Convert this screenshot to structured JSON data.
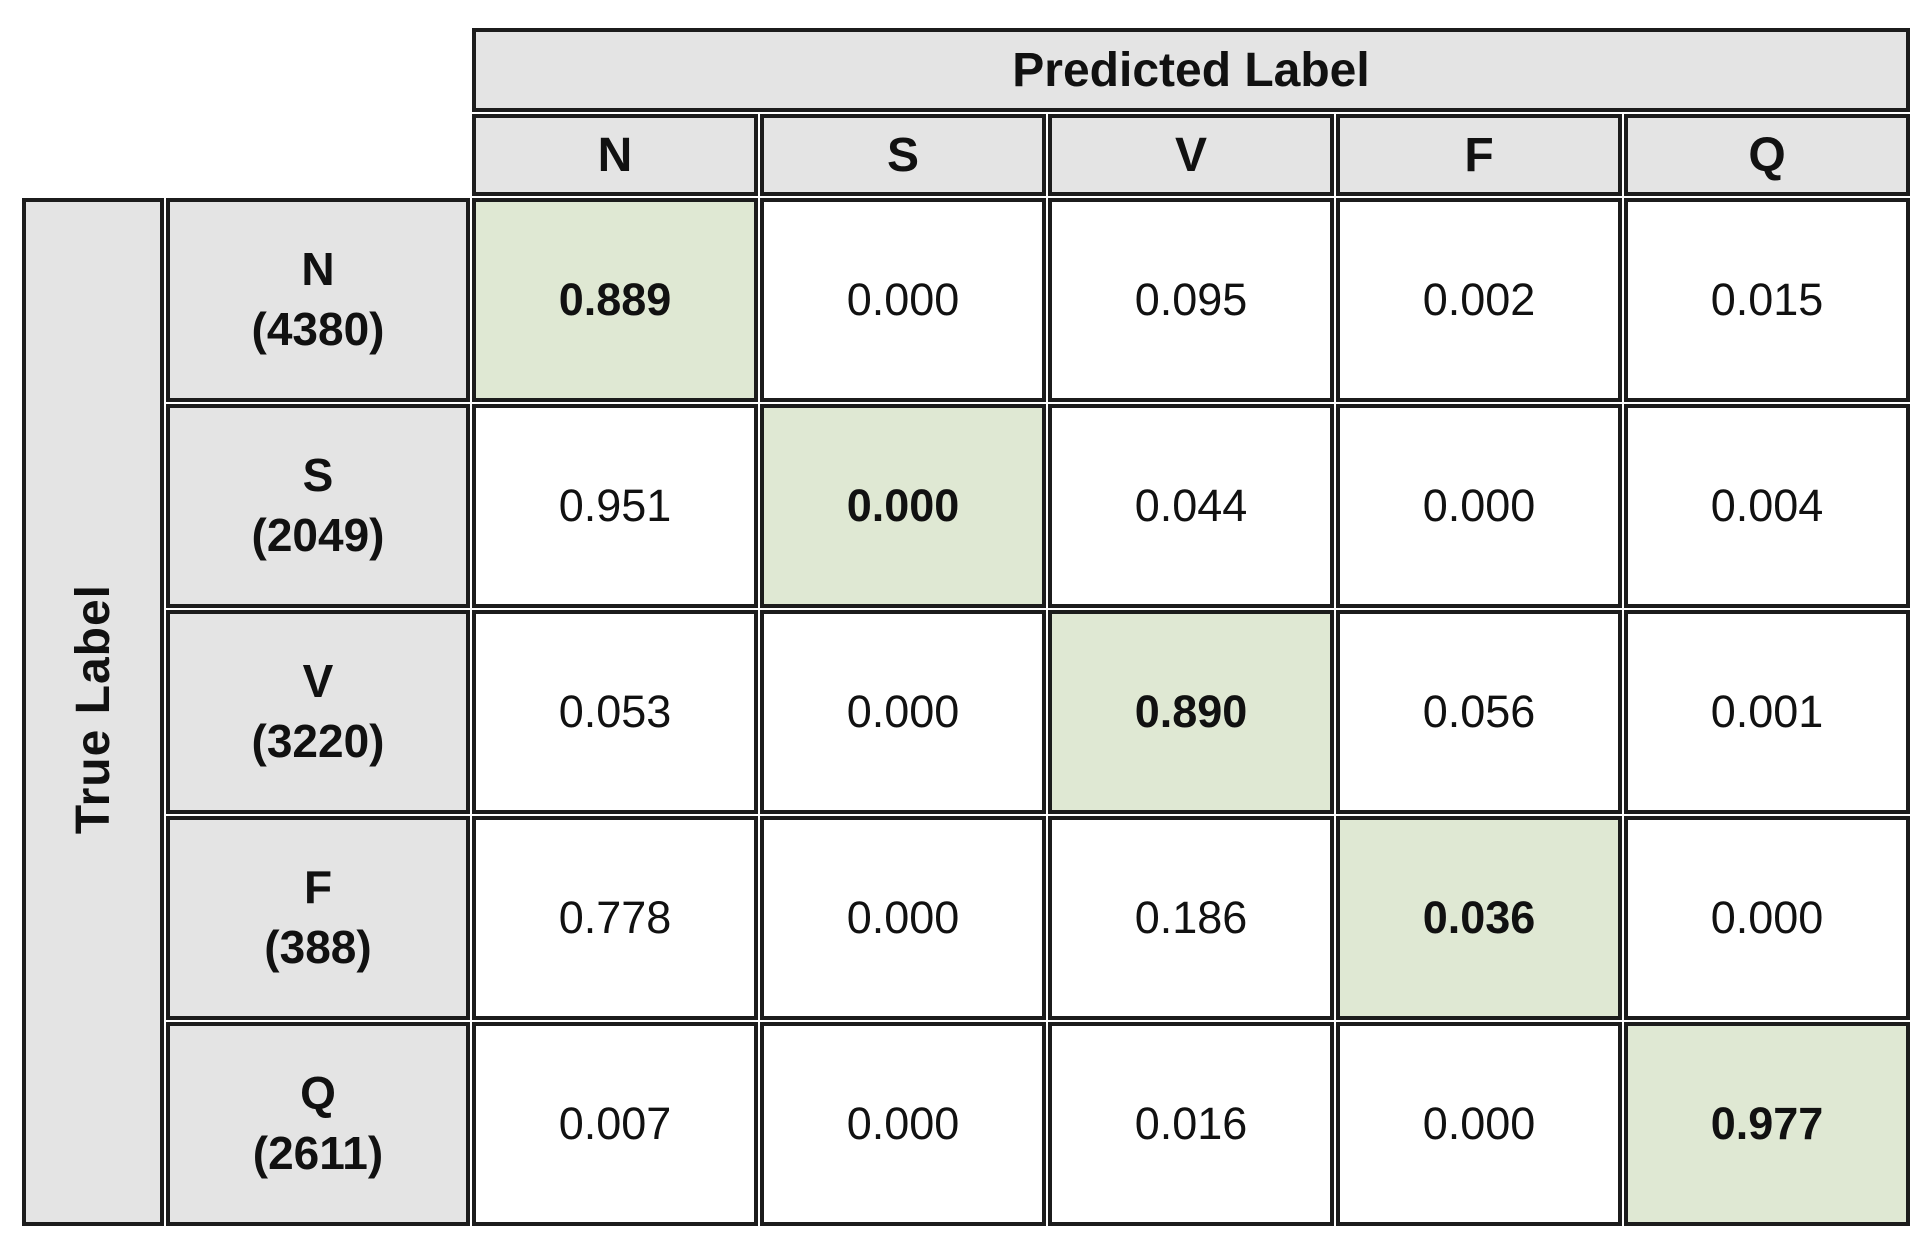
{
  "figure": {
    "predicted_axis_label": "Predicted Label",
    "true_axis_label": "True Label"
  },
  "columns": [
    "N",
    "S",
    "V",
    "F",
    "Q"
  ],
  "rows": [
    {
      "label": "N",
      "count": "(4380)",
      "values": [
        "0.889",
        "0.000",
        "0.095",
        "0.002",
        "0.015"
      ]
    },
    {
      "label": "S",
      "count": "(2049)",
      "values": [
        "0.951",
        "0.000",
        "0.044",
        "0.000",
        "0.004"
      ]
    },
    {
      "label": "V",
      "count": "(3220)",
      "values": [
        "0.053",
        "0.000",
        "0.890",
        "0.056",
        "0.001"
      ]
    },
    {
      "label": "F",
      "count": "(388)",
      "values": [
        "0.778",
        "0.000",
        "0.186",
        "0.036",
        "0.000"
      ]
    },
    {
      "label": "Q",
      "count": "(2611)",
      "values": [
        "0.007",
        "0.000",
        "0.016",
        "0.000",
        "0.977"
      ]
    }
  ],
  "colors": {
    "header_bg": "#e4e4e4",
    "diagonal_bg": "#dfe8d3",
    "border": "#1c1c1c"
  },
  "chart_data": {
    "type": "heatmap",
    "xlabel": "Predicted Label",
    "ylabel": "True Label",
    "x_categories": [
      "N",
      "S",
      "V",
      "F",
      "Q"
    ],
    "y_categories": [
      "N",
      "S",
      "V",
      "F",
      "Q"
    ],
    "row_counts": [
      4380,
      2049,
      3220,
      388,
      2611
    ],
    "matrix": [
      [
        0.889,
        0.0,
        0.095,
        0.002,
        0.015
      ],
      [
        0.951,
        0.0,
        0.044,
        0.0,
        0.004
      ],
      [
        0.053,
        0.0,
        0.89,
        0.056,
        0.001
      ],
      [
        0.778,
        0.0,
        0.186,
        0.036,
        0.0
      ],
      [
        0.007,
        0.0,
        0.016,
        0.0,
        0.977
      ]
    ],
    "highlighted_cells": "diagonal",
    "legend_position": "none",
    "grid": true
  }
}
